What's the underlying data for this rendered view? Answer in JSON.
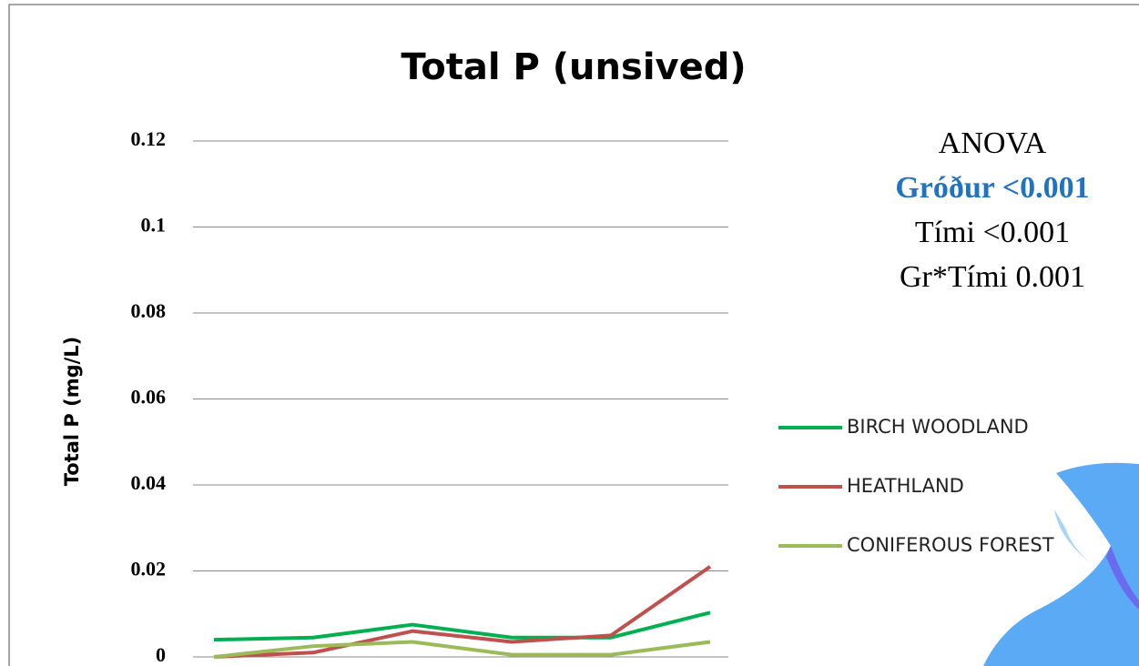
{
  "chart_data": {
    "type": "line",
    "title": "Total P (unsived)",
    "y_label": "Total P (mg/L)",
    "categories": [
      null,
      null,
      null,
      null,
      null,
      null
    ],
    "series": [
      {
        "name": "BIRCH WOODLAND",
        "color": "#00b050",
        "values": [
          0.004,
          0.0045,
          0.0075,
          0.0045,
          0.0045,
          0.0103
        ]
      },
      {
        "name": "HEATHLAND",
        "color": "#c0504d",
        "values": [
          0.0,
          0.001,
          0.006,
          0.0035,
          0.005,
          0.021
        ]
      },
      {
        "name": "CONIFEROUS FOREST",
        "color": "#9bbb59",
        "values": [
          0.0,
          0.0025,
          0.0035,
          0.0005,
          0.0005,
          0.0035
        ]
      }
    ],
    "ylim": [
      0,
      0.12
    ],
    "yticks": [
      0,
      0.02,
      0.04,
      0.06,
      0.08,
      0.1,
      0.12
    ],
    "grid": true,
    "annotations": [
      "ANOVA",
      "Gróður <0.001",
      "Tími <0.001",
      "Gr*Tími 0.001"
    ]
  }
}
